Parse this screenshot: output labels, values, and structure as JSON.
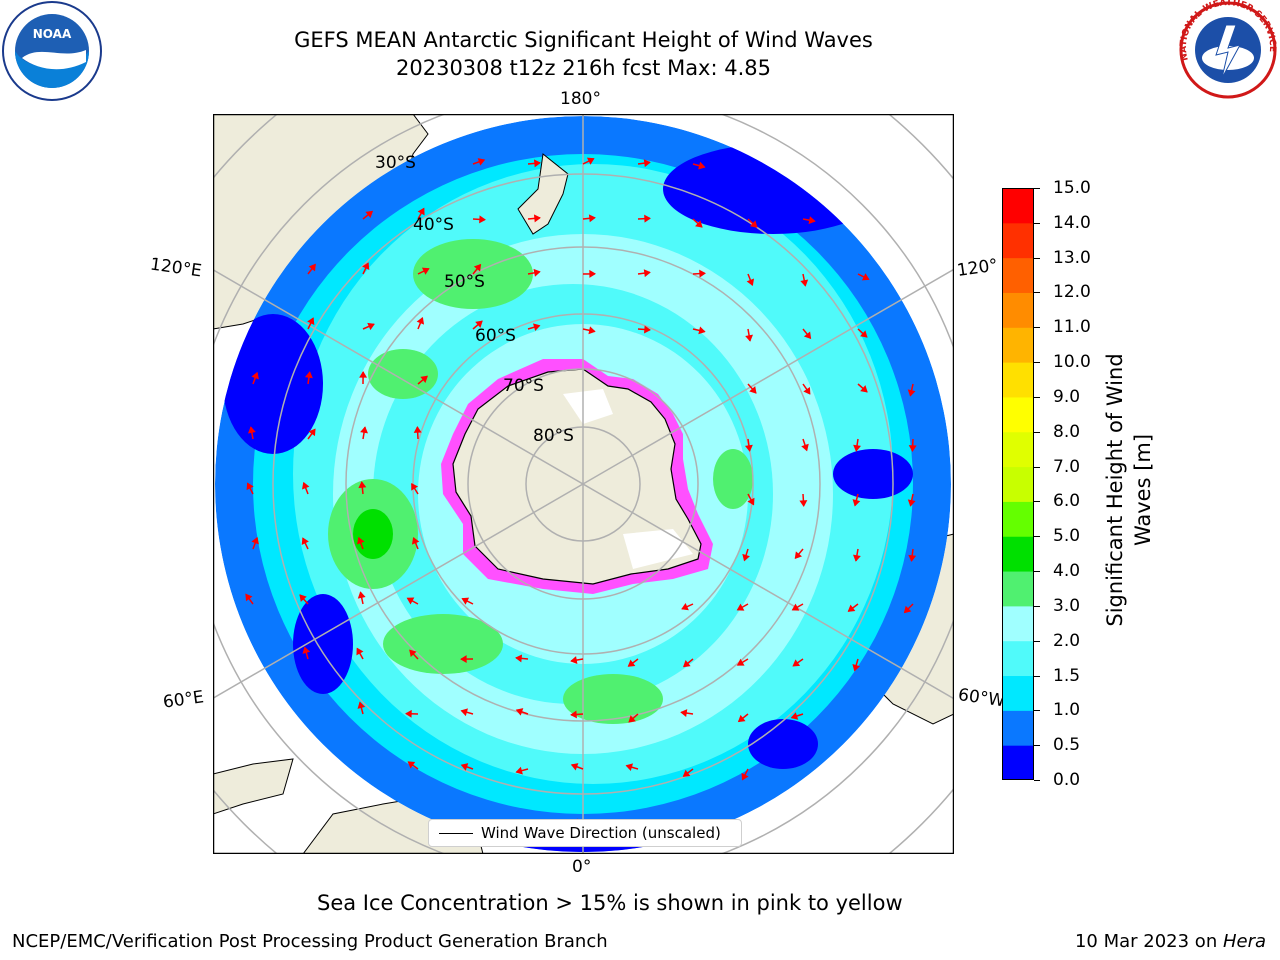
{
  "title": {
    "line1": "GEFS MEAN Antarctic Significant Height of Wind Waves",
    "line2": "20230308 t12z 216h fcst   Max: 4.85"
  },
  "map": {
    "projection": "south-polar-stereographic",
    "lon_labels": {
      "top": "180°",
      "bottom": "0°",
      "left_upper": "120°E",
      "left_lower": "60°E",
      "right_upper": "120°",
      "right_lower": "60°W"
    },
    "lat_labels": [
      "30°S",
      "40°S",
      "50°S",
      "60°S",
      "70°S",
      "80°S"
    ],
    "legend_label": "Wind Wave Direction (unscaled)",
    "arrow_color": "#ff0000"
  },
  "colorbar": {
    "label_line1": "Significant Height of Wind",
    "label_line2": "Waves [m]",
    "ticks": [
      "0.0",
      "0.5",
      "1.0",
      "1.5",
      "2.0",
      "3.0",
      "4.0",
      "5.0",
      "6.0",
      "7.0",
      "8.0",
      "9.0",
      "10.0",
      "11.0",
      "12.0",
      "13.0",
      "14.0",
      "15.0"
    ],
    "colors": [
      "#0000ff",
      "#0a78ff",
      "#00e8ff",
      "#50fafa",
      "#a0ffff",
      "#50f070",
      "#00e000",
      "#64ff00",
      "#c8ff00",
      "#e0ff00",
      "#ffff00",
      "#ffe000",
      "#ffb400",
      "#ff8c00",
      "#ff6000",
      "#ff3000",
      "#ff0000"
    ]
  },
  "caption": "Sea Ice Concentration > 15% is shown in pink to yellow",
  "footer": {
    "left": "NCEP/EMC/Verification Post Processing Product Generation Branch",
    "right_prefix": "10 Mar 2023 on ",
    "right_italic": "Hera"
  },
  "logos": {
    "left": "NOAA",
    "right": "NATIONAL WEATHER SERVICE"
  }
}
